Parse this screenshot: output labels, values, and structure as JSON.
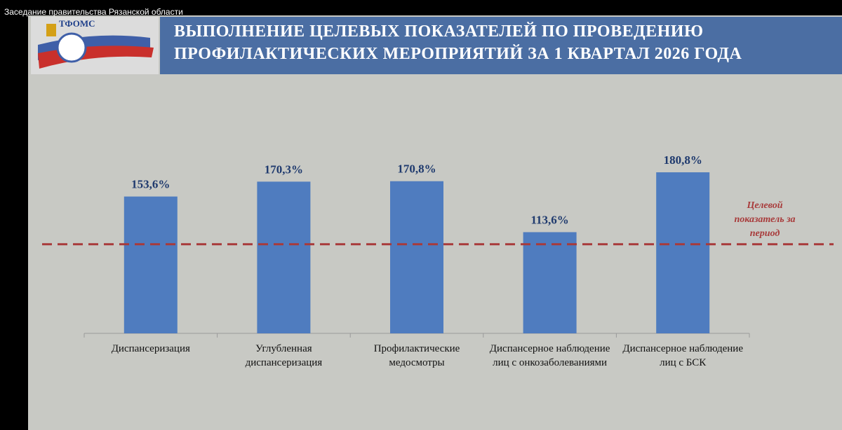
{
  "caption": "Заседание правительства Рязанской области",
  "logo": "ТФОМС",
  "chart_data": {
    "type": "bar",
    "title": [
      "ВЫПОЛНЕНИЕ ЦЕЛЕВЫХ ПОКАЗАТЕЛЕЙ ПО ПРОВЕДЕНИЮ",
      "ПРОФИЛАКТИЧЕСКИХ  МЕРОПРИЯТИЙ  ЗА 1 КВАРТАЛ  2026 ГОДА"
    ],
    "categories": [
      "Диспансеризация",
      "Углубленная диспансеризация",
      "Профилактические медосмотры",
      "Диспансерное наблюдение лиц с онкозаболеваниями",
      "Диспансерное наблюдение лиц с БСК"
    ],
    "values": [
      153.6,
      170.3,
      170.8,
      113.6,
      180.8
    ],
    "value_labels": [
      "153,6%",
      "170,3%",
      "170,8%",
      "113,6%",
      "180,8%"
    ],
    "color": "#4f7cbf",
    "target": {
      "value": 100,
      "label": "Целевой показатель за период",
      "color": "#a83a3a"
    }
  }
}
